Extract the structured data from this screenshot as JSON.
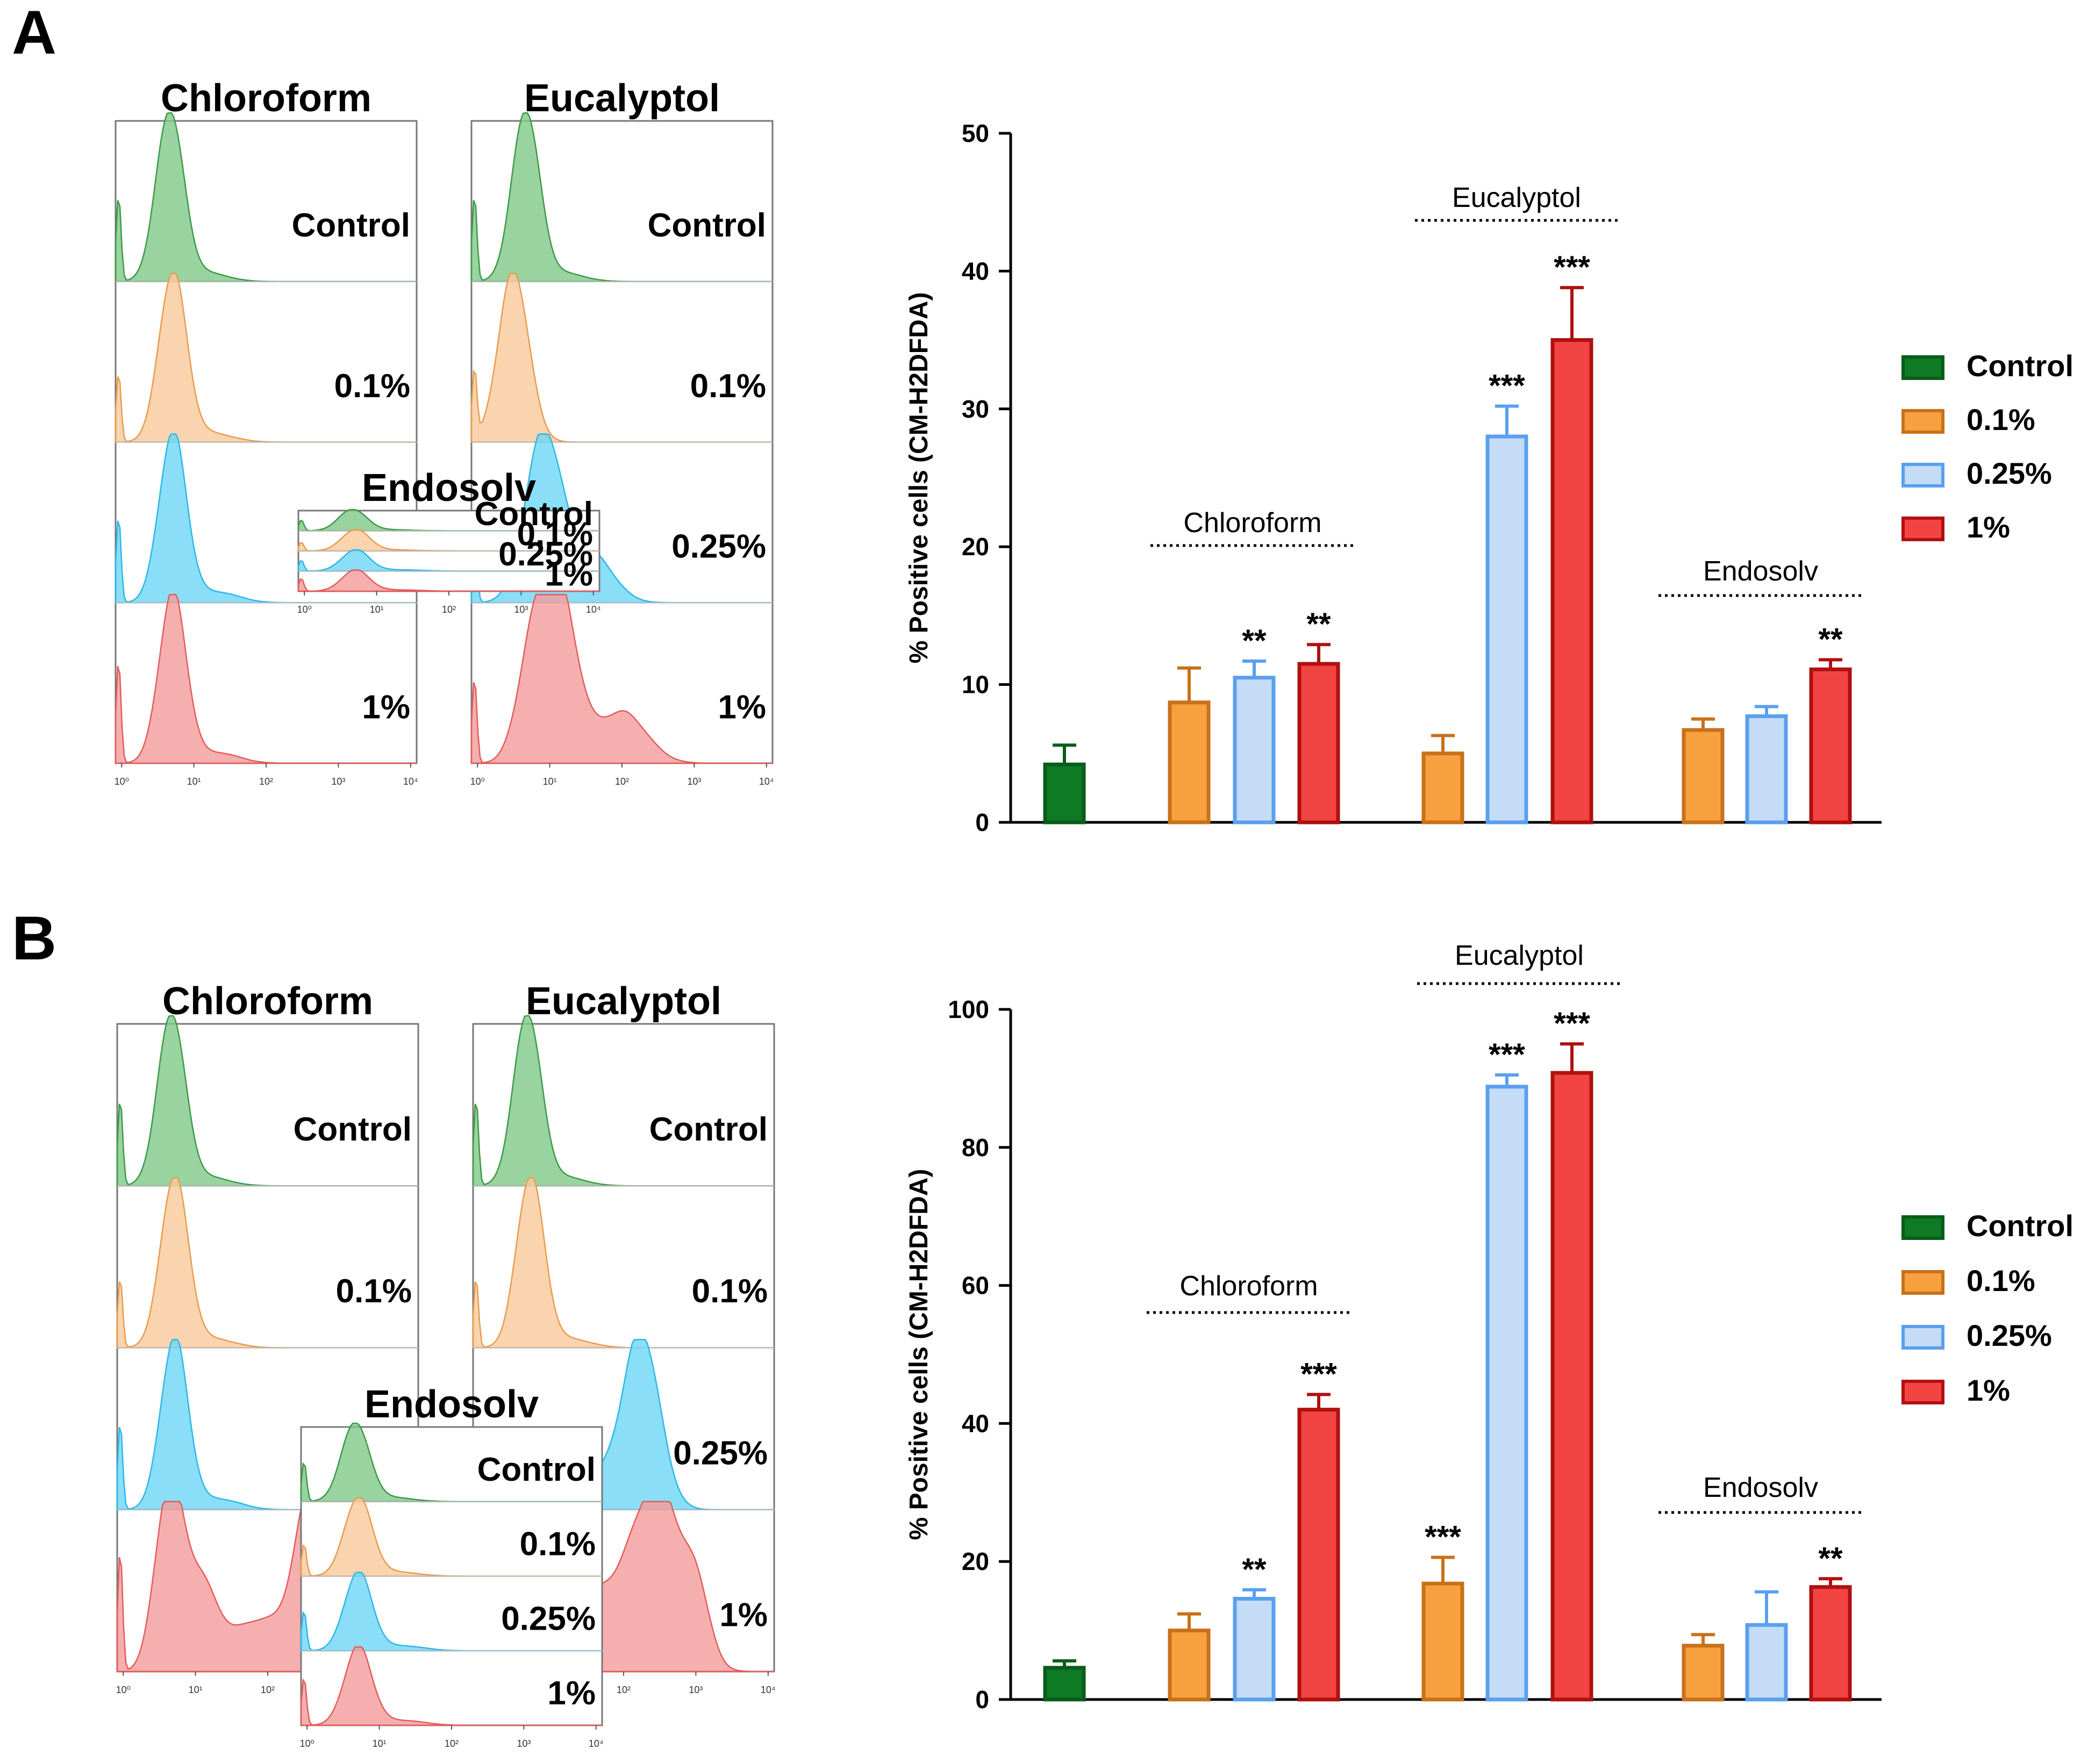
{
  "panels": [
    {
      "letter": "A",
      "hist_sample_labels": [
        "Control",
        "0.1%",
        "0.25%",
        "1%"
      ],
      "hist_x_ticks": [
        "10⁰",
        "10¹",
        "10²",
        "10³",
        "10⁴"
      ],
      "histograms": [
        {
          "title": "Chloroform",
          "profiles": [
            "g",
            "o",
            "c",
            "r"
          ]
        },
        {
          "title": "Eucalyptol",
          "profiles": [
            "g",
            "oL",
            "cS",
            "rS"
          ]
        },
        {
          "title": "Endosolv",
          "profiles": [
            "g",
            "o",
            "c",
            "r"
          ]
        }
      ]
    },
    {
      "letter": "B",
      "hist_sample_labels": [
        "Control",
        "0.1%",
        "0.25%",
        "1%"
      ],
      "hist_x_ticks": [
        "10⁰",
        "10¹",
        "10²",
        "10³",
        "10⁴"
      ],
      "histograms": [
        {
          "title": "Chloroform",
          "profiles": [
            "g",
            "o",
            "c",
            "rB"
          ]
        },
        {
          "title": "Eucalyptol",
          "profiles": [
            "g",
            "o",
            "cH",
            "rH"
          ]
        },
        {
          "title": "Endosolv",
          "profiles": [
            "g",
            "o",
            "c",
            "r"
          ]
        }
      ]
    }
  ],
  "chart_data": [
    {
      "type": "bar",
      "panel": "A",
      "ylabel": "% Positive cells (CM-H2DFDA)",
      "ylim": [
        0,
        50
      ],
      "yticks": [
        0,
        10,
        20,
        30,
        40,
        50
      ],
      "groups": [
        "",
        "Chloroform",
        "Eucalyptol",
        "Endosolv"
      ],
      "legend": [
        "Control",
        "0.1%",
        "0.25%",
        "1%"
      ],
      "series_colors": {
        "Control": "#0e7a24",
        "0.1%": "#f7a040",
        "0.25%": "#c5dcf6",
        "1%": "#f34444"
      },
      "bars": [
        {
          "group": "",
          "series": "Control",
          "value": 4.2,
          "error": 1.4,
          "sig": ""
        },
        {
          "group": "Chloroform",
          "series": "0.1%",
          "value": 8.7,
          "error": 2.5,
          "sig": ""
        },
        {
          "group": "Chloroform",
          "series": "0.25%",
          "value": 10.5,
          "error": 1.2,
          "sig": "**"
        },
        {
          "group": "Chloroform",
          "series": "1%",
          "value": 11.5,
          "error": 1.4,
          "sig": "**"
        },
        {
          "group": "Eucalyptol",
          "series": "0.1%",
          "value": 5.0,
          "error": 1.3,
          "sig": ""
        },
        {
          "group": "Eucalyptol",
          "series": "0.25%",
          "value": 28.0,
          "error": 2.2,
          "sig": "***"
        },
        {
          "group": "Eucalyptol",
          "series": "1%",
          "value": 35.0,
          "error": 3.8,
          "sig": "***"
        },
        {
          "group": "Endosolv",
          "series": "0.1%",
          "value": 6.7,
          "error": 0.8,
          "sig": ""
        },
        {
          "group": "Endosolv",
          "series": "0.25%",
          "value": 7.7,
          "error": 0.7,
          "sig": ""
        },
        {
          "group": "Endosolv",
          "series": "1%",
          "value": 11.1,
          "error": 0.7,
          "sig": "**"
        }
      ]
    },
    {
      "type": "bar",
      "panel": "B",
      "ylabel": "% Positive cells (CM-H2DFDA)",
      "ylim": [
        0,
        100
      ],
      "yticks": [
        0,
        20,
        40,
        60,
        80,
        100
      ],
      "groups": [
        "",
        "Chloroform",
        "Eucalyptol",
        "Endosolv"
      ],
      "legend": [
        "Control",
        "0.1%",
        "0.25%",
        "1%"
      ],
      "series_colors": {
        "Control": "#0e7a24",
        "0.1%": "#f7a040",
        "0.25%": "#c5dcf6",
        "1%": "#f34444"
      },
      "bars": [
        {
          "group": "",
          "series": "Control",
          "value": 4.6,
          "error": 1.0,
          "sig": ""
        },
        {
          "group": "Chloroform",
          "series": "0.1%",
          "value": 10.0,
          "error": 2.4,
          "sig": ""
        },
        {
          "group": "Chloroform",
          "series": "0.25%",
          "value": 14.6,
          "error": 1.3,
          "sig": "**"
        },
        {
          "group": "Chloroform",
          "series": "1%",
          "value": 42.0,
          "error": 2.2,
          "sig": "***"
        },
        {
          "group": "Eucalyptol",
          "series": "0.1%",
          "value": 16.8,
          "error": 3.8,
          "sig": "***"
        },
        {
          "group": "Eucalyptol",
          "series": "0.25%",
          "value": 88.8,
          "error": 1.7,
          "sig": "***"
        },
        {
          "group": "Eucalyptol",
          "series": "1%",
          "value": 90.8,
          "error": 4.2,
          "sig": "***"
        },
        {
          "group": "Endosolv",
          "series": "0.1%",
          "value": 7.8,
          "error": 1.6,
          "sig": ""
        },
        {
          "group": "Endosolv",
          "series": "0.25%",
          "value": 10.8,
          "error": 4.8,
          "sig": ""
        },
        {
          "group": "Endosolv",
          "series": "1%",
          "value": 16.3,
          "error": 1.2,
          "sig": "**"
        }
      ]
    }
  ]
}
